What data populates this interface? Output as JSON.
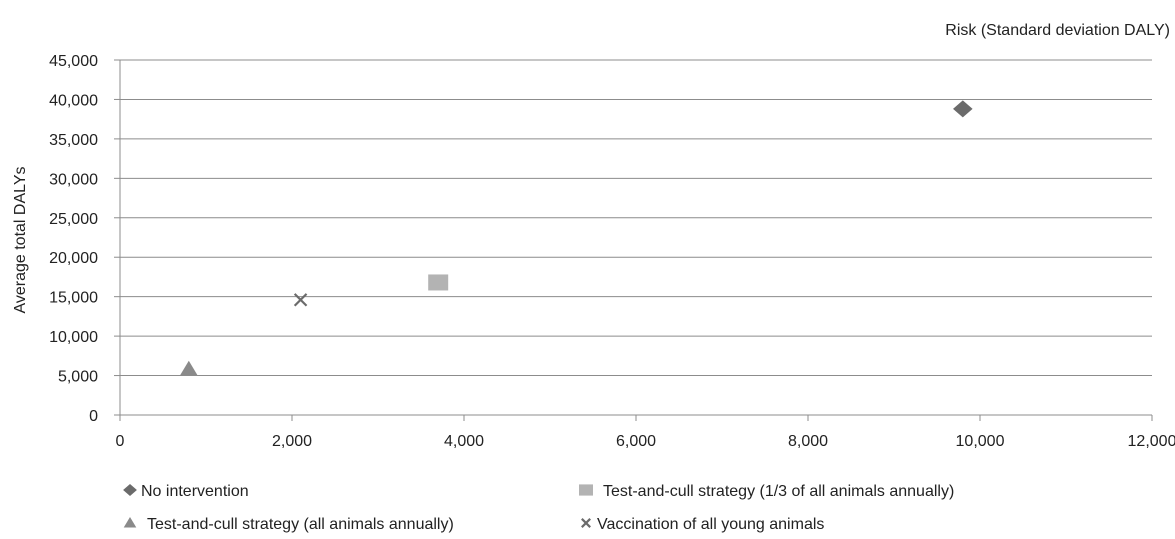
{
  "chart_data": {
    "type": "scatter",
    "title": "",
    "xlabel": "Risk (Standard deviation DALY)",
    "ylabel": "Average total DALYs",
    "xlim": [
      0,
      12000
    ],
    "ylim": [
      0,
      45000
    ],
    "x_ticks": [
      0,
      2000,
      4000,
      6000,
      8000,
      10000,
      12000
    ],
    "y_ticks": [
      0,
      5000,
      10000,
      15000,
      20000,
      25000,
      30000,
      35000,
      40000,
      45000
    ],
    "x_tick_labels": [
      "0",
      "2,000",
      "4,000",
      "6,000",
      "8,000",
      "10,000",
      "12,000"
    ],
    "y_tick_labels": [
      "0",
      "5,000",
      "10,000",
      "15,000",
      "20,000",
      "25,000",
      "30,000",
      "35,000",
      "40,000",
      "45,000"
    ],
    "grid": "horizontal",
    "legend_position": "bottom",
    "series": [
      {
        "name": "No intervention",
        "marker": "diamond",
        "color": "#6b6b6b",
        "x": 9800,
        "y": 38800
      },
      {
        "name": "Test-and-cull strategy (1/3 of all animals annually)",
        "marker": "square",
        "color": "#b3b3b3",
        "x": 3700,
        "y": 16800
      },
      {
        "name": "Test-and-cull strategy (all animals annually)",
        "marker": "triangle",
        "color": "#8a8a8a",
        "x": 800,
        "y": 5800
      },
      {
        "name": "Vaccination of all young animals",
        "marker": "x",
        "color": "#6b6b6b",
        "x": 2100,
        "y": 14600
      }
    ]
  }
}
